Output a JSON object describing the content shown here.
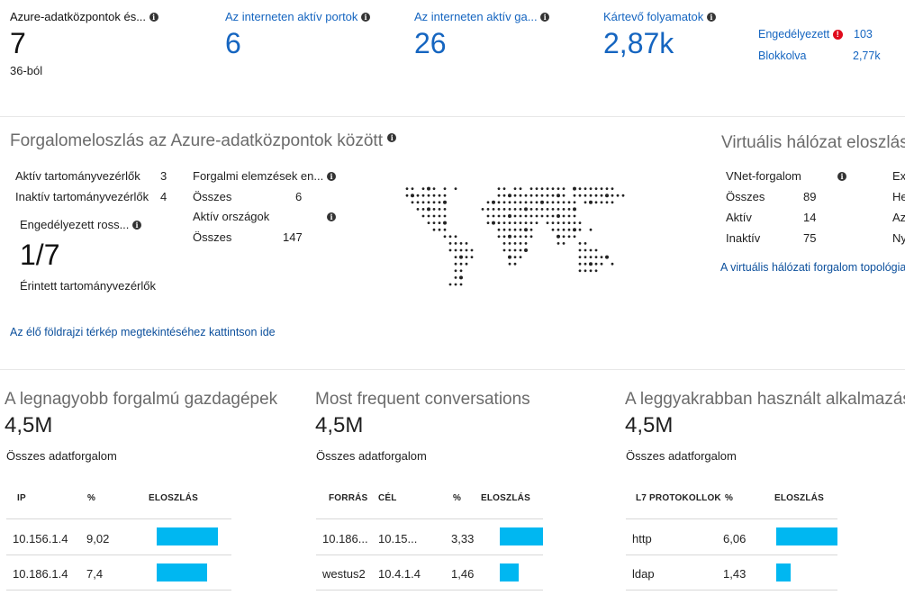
{
  "kpis": {
    "datacenters": {
      "label": "Azure-adatközpontok és...",
      "value": "7",
      "sub": "36-ból"
    },
    "open_ports": {
      "label": "Az interneten aktív portok",
      "value": "6"
    },
    "active_hosts": {
      "label": "Az interneten aktív ga...",
      "value": "26"
    },
    "malicious_flows": {
      "label": "Kártevő folyamatok",
      "value": "2,87k"
    },
    "allowed": {
      "label": "Engedélyezett",
      "value": "103"
    },
    "blocked": {
      "label": "Blokkolva",
      "value": "2,77k"
    }
  },
  "traffic_distribution": {
    "title": "Forgalomeloszlás az Azure-adatközpontok között",
    "rows_left": [
      {
        "label": "Aktív tartományvezérlők",
        "value": "3"
      },
      {
        "label": "Inaktív tartományvezérlők",
        "value": "4"
      }
    ],
    "misconfigured": {
      "label": "Engedélyezett ross...",
      "value": "1/7",
      "sub": "Érintett tartományvezérlők"
    },
    "analytics": {
      "label": "Forgalmi elemzések en...",
      "total_label": "Összes",
      "total_value": "6"
    },
    "countries": {
      "label": "Aktív országok",
      "total_label": "Összes",
      "total_value": "147"
    },
    "map_link": "Az élő földrajzi térkép megtekintéséhez kattintson ide"
  },
  "vnet": {
    "title": "Virtuális hálózat eloszlás",
    "header": "VNet-forgalom",
    "rows": [
      {
        "label": "Összes",
        "value": "89"
      },
      {
        "label": "Aktív",
        "value": "14"
      },
      {
        "label": "Inaktív",
        "value": "75"
      }
    ],
    "right_col": [
      "Ex",
      "He",
      "Az",
      "Ny"
    ],
    "link": "A virtuális hálózati forgalom topológia"
  },
  "top_hosts": {
    "title": "A legnagyobb forgalmú gazdagépek",
    "value": "4,5M",
    "sub": "Összes adatforgalom",
    "columns": [
      "IP",
      "%",
      "ELOSZLÁS"
    ],
    "rows": [
      {
        "ip": "10.156.1.4",
        "pct": "9,02",
        "dist": 9.02
      },
      {
        "ip": "10.186.1.4",
        "pct": "7,4",
        "dist": 7.4
      }
    ]
  },
  "conversations": {
    "title": "Most frequent conversations",
    "value": "4,5M",
    "sub": "Összes adatforgalom",
    "columns": [
      "FORRÁS",
      "CÉL",
      "%",
      "ELOSZLÁS"
    ],
    "rows": [
      {
        "src": "10.186...",
        "dst": "10.15...",
        "pct": "3,33",
        "dist": 3.33
      },
      {
        "src": "westus2",
        "dst": "10.4.1.4",
        "pct": "1,46",
        "dist": 1.46
      }
    ]
  },
  "apps": {
    "title": "A leggyakrabban használt alkalmazás",
    "value": "4,5M",
    "sub": "Összes adatforgalom",
    "columns": [
      "L7 PROTOKOLLOK",
      "%",
      "ELOSZLÁS"
    ],
    "rows": [
      {
        "proto": "http",
        "pct": "6,06",
        "dist": 6.06
      },
      {
        "proto": "ldap",
        "pct": "1,43",
        "dist": 1.43
      }
    ]
  },
  "icons": {
    "info": "info-icon",
    "error": "error-icon",
    "map": "world-map"
  },
  "colors": {
    "accent": "#1565c0",
    "bar": "#00b7f1",
    "error": "#e00b1c"
  }
}
